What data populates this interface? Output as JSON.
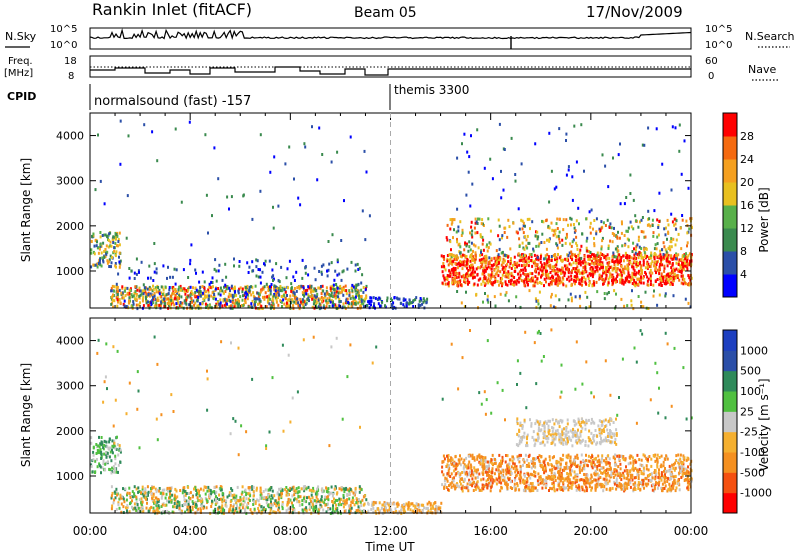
{
  "header": {
    "station": "Rankin Inlet (fitACF)",
    "beam": "Beam 05",
    "date": "17/Nov/2009"
  },
  "top_panels": {
    "nsky_label": "N.Sky",
    "nsearch_label": "N.Search",
    "noise_ticks": [
      "10^5",
      "10^0"
    ],
    "freq_label_1": "Freq.",
    "freq_label_2": "[MHz]",
    "freq_ticks": [
      "18",
      "8"
    ],
    "nave_label": "Nave",
    "nave_ticks": [
      "60",
      "0"
    ],
    "cpid_label": "CPID",
    "cpid_segments": [
      {
        "label": "normalsound (fast) -157",
        "start_hour": 0
      },
      {
        "label": "themis 3300",
        "start_hour": 12
      }
    ]
  },
  "colors": {
    "power_scale": [
      "#0000ff",
      "#2b4fa8",
      "#3a8a4e",
      "#58b04a",
      "#e8c020",
      "#f5a020",
      "#f56a10",
      "#ff0000"
    ],
    "velocity_scale": [
      "#ff0000",
      "#f55010",
      "#f59020",
      "#f5b030",
      "#c8c8c8",
      "#50c040",
      "#2f8a5a",
      "#2b4fa8",
      "#1d3fc0"
    ],
    "background_dots": "#2b4fa8"
  },
  "chart_data": [
    {
      "type": "heatmap",
      "name": "power-panel",
      "ylabel": "Slant Range [km]",
      "xlabel": "",
      "x_range_hours": [
        0,
        24
      ],
      "y_range_km": [
        180,
        4500
      ],
      "y_ticks": [
        1000,
        2000,
        3000,
        4000
      ],
      "x_tick_labels": [
        "00:00",
        "04:00",
        "08:00",
        "12:00",
        "16:00",
        "20:00",
        "00:00"
      ],
      "colorbar": {
        "label": "Power [dB]",
        "tick_labels": [
          "4",
          "8",
          "12",
          "16",
          "20",
          "24",
          "28"
        ],
        "range": [
          0,
          32
        ]
      }
    },
    {
      "type": "heatmap",
      "name": "velocity-panel",
      "ylabel": "Slant Range [km]",
      "xlabel": "Time UT",
      "x_range_hours": [
        0,
        24
      ],
      "y_range_km": [
        180,
        4500
      ],
      "y_ticks": [
        1000,
        2000,
        3000,
        4000
      ],
      "x_tick_labels": [
        "00:00",
        "04:00",
        "08:00",
        "12:00",
        "16:00",
        "20:00",
        "00:00"
      ],
      "colorbar": {
        "label": "Velocity [m s⁻¹]",
        "tick_labels": [
          "-1000",
          "-500",
          "-100",
          "-25",
          "25",
          "100",
          "500",
          "1000"
        ]
      }
    }
  ]
}
